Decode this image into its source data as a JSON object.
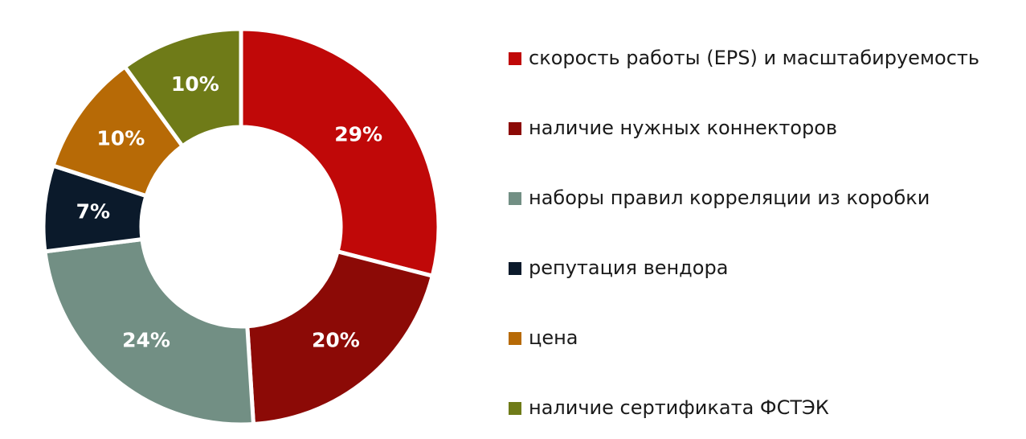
{
  "chart_data": {
    "type": "donut",
    "categories": [
      "скорость работы (EPS) и масштабируемость",
      "наличие нужных коннекторов",
      "наборы правил корреляции из коробки",
      "репутация вендора",
      "цена",
      "наличие сертификата ФСТЭК"
    ],
    "values": [
      29,
      20,
      24,
      7,
      10,
      10
    ],
    "value_labels": [
      "29%",
      "20%",
      "24%",
      "7%",
      "10%",
      "10%"
    ],
    "colors": [
      "#c00808",
      "#8c0a06",
      "#728f84",
      "#0b1a2b",
      "#b76a06",
      "#6f7b18"
    ],
    "legend": "right"
  }
}
